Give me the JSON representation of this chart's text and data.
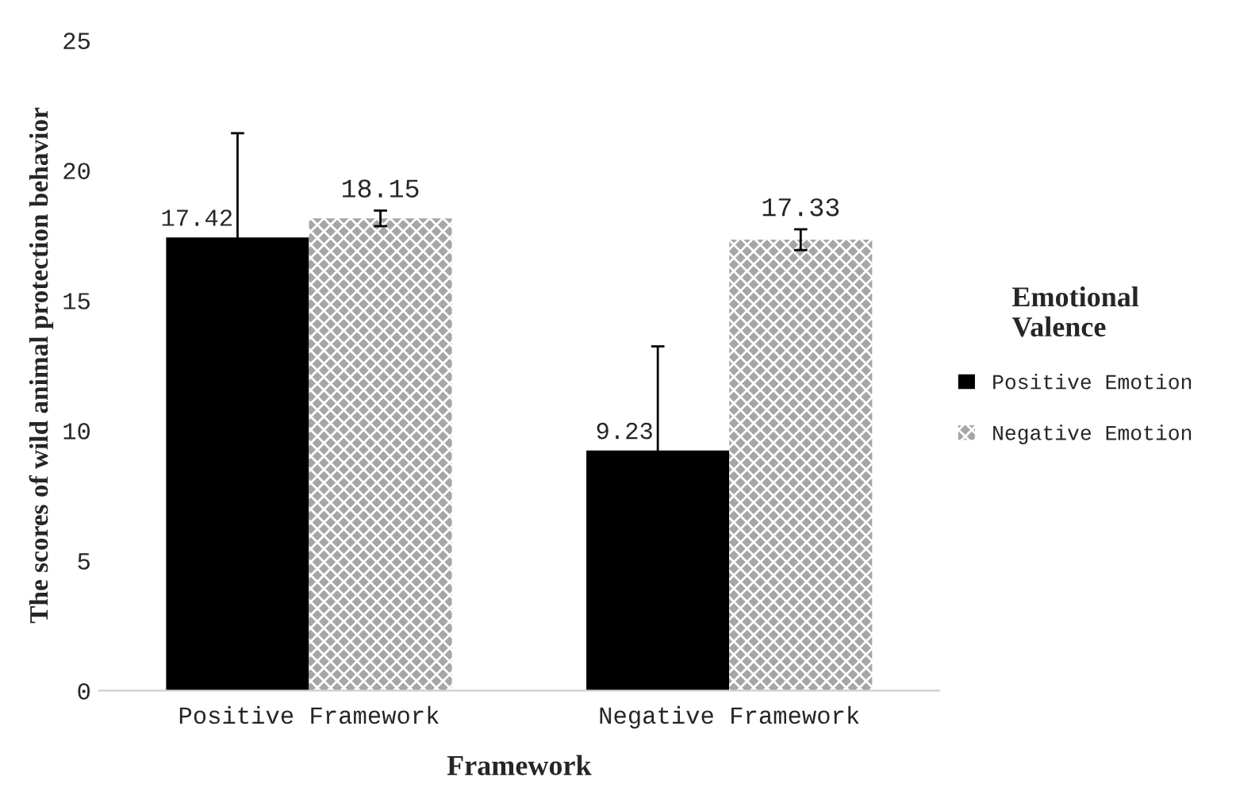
{
  "chart_data": {
    "type": "bar",
    "xlabel": "Framework",
    "ylabel": "The scores of wild animal protection behavior",
    "legend_title": "Emotional Valence",
    "categories": [
      "Positive Framework",
      "Negative Framework"
    ],
    "series": [
      {
        "name": "Positive Emotion",
        "color": "#000000",
        "values": [
          17.42,
          9.23
        ],
        "errors": [
          4.0,
          4.0
        ]
      },
      {
        "name": "Negative Emotion",
        "color": "#a6a6a6",
        "values": [
          18.15,
          17.33
        ],
        "errors": [
          0.3,
          0.4
        ]
      }
    ],
    "ylim": [
      0,
      25
    ],
    "yticks": [
      0,
      5,
      10,
      15,
      20,
      25
    ],
    "data_labels": true,
    "grid": false,
    "legend": "right"
  }
}
